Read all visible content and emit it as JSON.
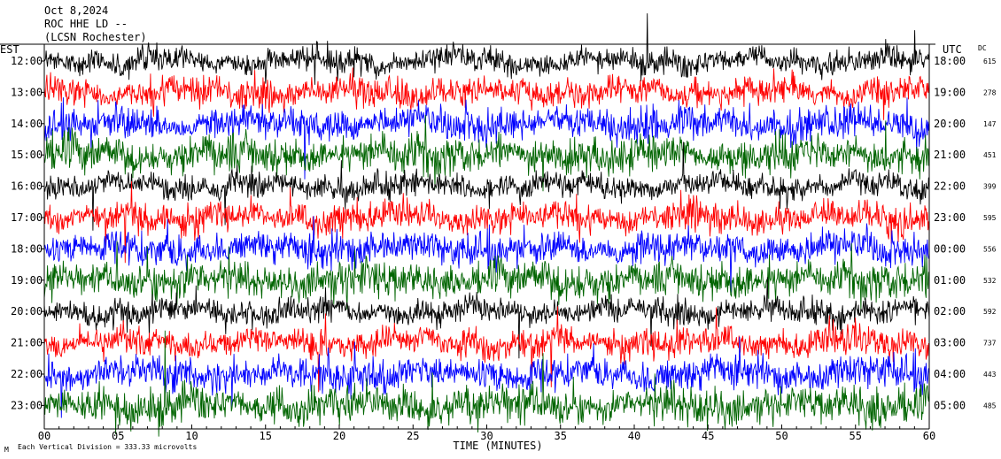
{
  "header": {
    "date": "Oct 8,2024",
    "station": "ROC HHE LD --",
    "network": "(LCSN Rochester)"
  },
  "chart_data": {
    "type": "line",
    "title": "",
    "left_axis_label": "EST",
    "right_axis_label": "UTC",
    "dc_label": "DC",
    "xlabel": "TIME (MINUTES)",
    "xlim": [
      0,
      60
    ],
    "x_ticks": [
      "00",
      "05",
      "10",
      "15",
      "20",
      "25",
      "30",
      "35",
      "40",
      "45",
      "50",
      "55",
      "60"
    ],
    "series_colors": [
      "#000000",
      "#ff0000",
      "#0000ff",
      "#006400"
    ],
    "rows": [
      {
        "est": "12:00",
        "utc": "18:00",
        "dc": "615"
      },
      {
        "est": "13:00",
        "utc": "19:00",
        "dc": "278"
      },
      {
        "est": "14:00",
        "utc": "20:00",
        "dc": "147"
      },
      {
        "est": "15:00",
        "utc": "21:00",
        "dc": "451"
      },
      {
        "est": "16:00",
        "utc": "22:00",
        "dc": "399"
      },
      {
        "est": "17:00",
        "utc": "23:00",
        "dc": "595"
      },
      {
        "est": "18:00",
        "utc": "00:00",
        "dc": "556"
      },
      {
        "est": "19:00",
        "utc": "01:00",
        "dc": "532"
      },
      {
        "est": "20:00",
        "utc": "02:00",
        "dc": "592"
      },
      {
        "est": "21:00",
        "utc": "03:00",
        "dc": "737"
      },
      {
        "est": "22:00",
        "utc": "04:00",
        "dc": "443"
      },
      {
        "est": "23:00",
        "utc": "05:00",
        "dc": "485"
      }
    ]
  },
  "footer": {
    "scale_note": "Each Vertical Division =  333.33 microvolts",
    "corner_mark": "M"
  }
}
